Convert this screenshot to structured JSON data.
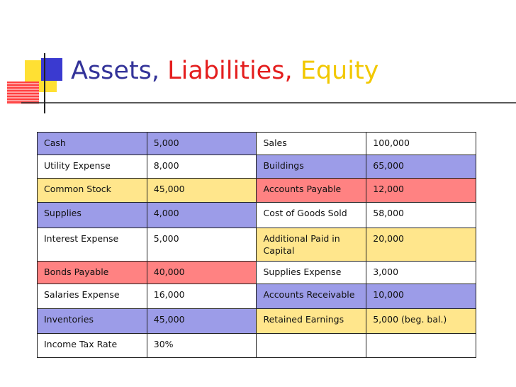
{
  "title": {
    "assets": "Assets,",
    "liabilities": "Liabilities,",
    "equity": "Equity"
  },
  "table": {
    "rows": [
      [
        "Cash",
        "5,000",
        "Sales",
        "100,000"
      ],
      [
        "Utility Expense",
        "8,000",
        "Buildings",
        "65,000"
      ],
      [
        "Common Stock",
        "45,000",
        "Accounts Payable",
        "12,000"
      ],
      [
        "Supplies",
        "4,000",
        "Cost of Goods Sold",
        "58,000"
      ],
      [
        "Interest Expense",
        "5,000",
        "Additional Paid in Capital",
        "20,000"
      ],
      [
        "Bonds Payable",
        "40,000",
        "Supplies Expense",
        "3,000"
      ],
      [
        "Salaries Expense",
        "16,000",
        "Accounts Receivable",
        "10,000"
      ],
      [
        "Inventories",
        "45,000",
        "Retained Earnings",
        "5,000 (beg. bal.)"
      ],
      [
        "Income Tax Rate",
        "30%"
      ]
    ]
  }
}
